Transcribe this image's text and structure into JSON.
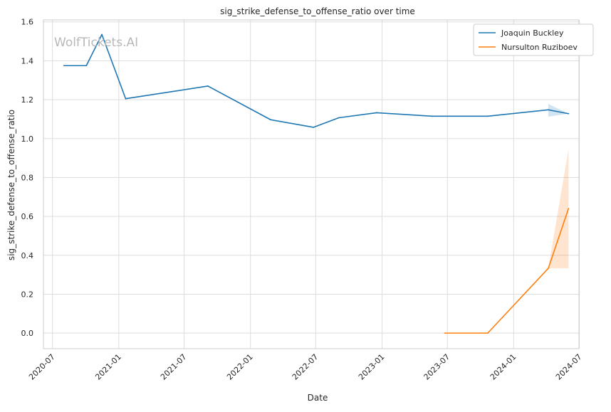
{
  "chart_data": {
    "type": "line",
    "title": "sig_strike_defense_to_offense_ratio over time",
    "xlabel": "Date",
    "ylabel": "sig_strike_defense_to_offense_ratio",
    "watermark": "WolfTickets.AI",
    "xlim": [
      "2020-06-06",
      "2024-06-30"
    ],
    "ylim": [
      -0.08,
      1.61
    ],
    "x_ticks": [
      "2020-07",
      "2021-01",
      "2021-07",
      "2022-01",
      "2022-07",
      "2023-01",
      "2023-07",
      "2024-01",
      "2024-07"
    ],
    "y_ticks": [
      "0.0",
      "0.2",
      "0.4",
      "0.6",
      "0.8",
      "1.0",
      "1.2",
      "1.4",
      "1.6"
    ],
    "y_tick_values": [
      0.0,
      0.2,
      0.4,
      0.6,
      0.8,
      1.0,
      1.2,
      1.4,
      1.6
    ],
    "grid": true,
    "legend_position": "top-right",
    "series": [
      {
        "name": "Joaquin Buckley",
        "color": "#1f77b4",
        "points": [
          {
            "date": "2020-08-02",
            "y": 1.375
          },
          {
            "date": "2020-10-03",
            "y": 1.375
          },
          {
            "date": "2020-11-15",
            "y": 1.535
          },
          {
            "date": "2021-01-20",
            "y": 1.205
          },
          {
            "date": "2021-09-05",
            "y": 1.27
          },
          {
            "date": "2022-02-26",
            "y": 1.097
          },
          {
            "date": "2022-06-25",
            "y": 1.058
          },
          {
            "date": "2022-09-03",
            "y": 1.107
          },
          {
            "date": "2022-12-17",
            "y": 1.133
          },
          {
            "date": "2023-05-20",
            "y": 1.115
          },
          {
            "date": "2023-10-21",
            "y": 1.115
          },
          {
            "date": "2024-04-06",
            "y": 1.148
          },
          {
            "date": "2024-06-01",
            "y": 1.128
          }
        ],
        "band": [
          {
            "date": "2024-04-06",
            "low": 1.113,
            "high": 1.178
          },
          {
            "date": "2024-06-01",
            "low": 1.128,
            "high": 1.128
          }
        ]
      },
      {
        "name": "Nursulton Ruziboev",
        "color": "#ff7f0e",
        "points": [
          {
            "date": "2023-06-24",
            "y": 0.0
          },
          {
            "date": "2023-10-21",
            "y": 0.0
          },
          {
            "date": "2024-04-06",
            "y": 0.333
          },
          {
            "date": "2024-06-01",
            "y": 0.64
          }
        ],
        "band": [
          {
            "date": "2024-04-06",
            "low": 0.333,
            "high": 0.333
          },
          {
            "date": "2024-06-01",
            "low": 0.333,
            "high": 0.945
          }
        ]
      }
    ]
  }
}
